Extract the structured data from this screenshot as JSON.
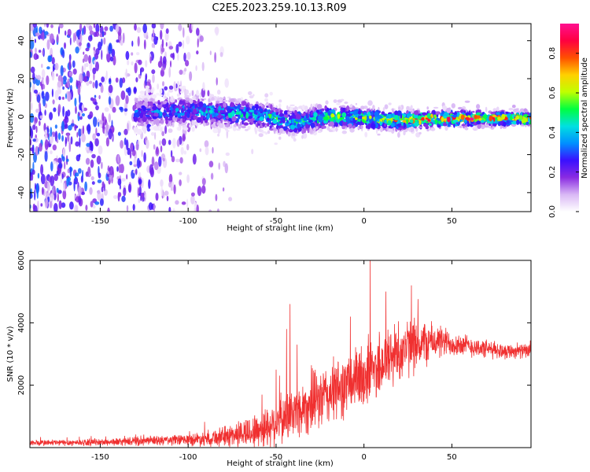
{
  "title": "C2E5.2023.259.10.13.R09",
  "chart_data": [
    {
      "type": "heatmap",
      "xlabel": "Height of straight line (km)",
      "ylabel": "Frequency (Hz)",
      "xlim": [
        -190,
        95
      ],
      "ylim": [
        -50,
        49
      ],
      "xticks": [
        -150,
        -100,
        -50,
        0,
        50
      ],
      "yticks": [
        -40,
        -20,
        0,
        20,
        40
      ],
      "colorbar": {
        "label": "Normalized spectral amplitude",
        "range": [
          0.0,
          0.95
        ],
        "ticks": [
          "0.0",
          "0.2",
          "0.4",
          "0.6",
          "0.8"
        ],
        "tick_values": [
          0.0,
          0.2,
          0.4,
          0.6,
          0.8
        ],
        "colors": [
          "#ffffff",
          "#d9b8f5",
          "#8a2be2",
          "#3a10ff",
          "#0090ff",
          "#00e0e0",
          "#00ff40",
          "#c0ff00",
          "#ffd000",
          "#ff5000",
          "#ff0040",
          "#ff1090"
        ]
      },
      "bands": [
        {
          "region": "noise",
          "x_range": [
            -190,
            -75
          ],
          "f_range": [
            -50,
            49
          ],
          "amplitude": 0.15
        },
        {
          "region": "signal",
          "x_range": [
            -130,
            95
          ],
          "center_hz": [
            [
              -130,
              2
            ],
            [
              -100,
              3
            ],
            [
              -60,
              1
            ],
            [
              -40,
              -3
            ],
            [
              -20,
              0
            ],
            [
              0,
              -1
            ],
            [
              20,
              -2
            ],
            [
              50,
              -1
            ],
            [
              95,
              -1
            ]
          ],
          "width_hz": [
            [
              -130,
              10
            ],
            [
              -60,
              9
            ],
            [
              0,
              7
            ],
            [
              95,
              4
            ]
          ],
          "amplitude": [
            [
              -130,
              0.3
            ],
            [
              -60,
              0.45
            ],
            [
              0,
              0.55
            ],
            [
              40,
              0.75
            ],
            [
              95,
              0.85
            ]
          ]
        }
      ]
    },
    {
      "type": "line",
      "color": "#f03030",
      "xlabel": "Height of straight line (km)",
      "ylabel": "SNR (10 * v/v)",
      "xlim": [
        -190,
        95
      ],
      "ylim": [
        0,
        6000
      ],
      "xticks": [
        -150,
        -100,
        -50,
        0,
        50
      ],
      "yticks": [
        2000,
        4000,
        6000
      ],
      "envelope": {
        "x": [
          -190,
          -150,
          -100,
          -80,
          -60,
          -50,
          -40,
          -30,
          -20,
          -10,
          0,
          10,
          20,
          30,
          40,
          50,
          60,
          70,
          80,
          95
        ],
        "y_mean": [
          150,
          170,
          250,
          350,
          550,
          800,
          1100,
          1400,
          1700,
          2000,
          2300,
          2700,
          3100,
          3300,
          3400,
          3350,
          3250,
          3150,
          3100,
          3100
        ],
        "y_spread": [
          120,
          130,
          220,
          380,
          700,
          900,
          1000,
          1100,
          1200,
          1200,
          1300,
          1300,
          1200,
          1000,
          700,
          500,
          400,
          350,
          300,
          250
        ]
      },
      "peaks": [
        {
          "x": 3.5,
          "y": 6000
        },
        {
          "x": 12.5,
          "y": 5000
        },
        {
          "x": 27,
          "y": 5200
        },
        {
          "x": -42,
          "y": 4600
        },
        {
          "x": -38,
          "y": 3300
        },
        {
          "x": -44,
          "y": 3800
        },
        {
          "x": -50,
          "y": 2500
        },
        {
          "x": -58,
          "y": 1700
        }
      ]
    }
  ]
}
